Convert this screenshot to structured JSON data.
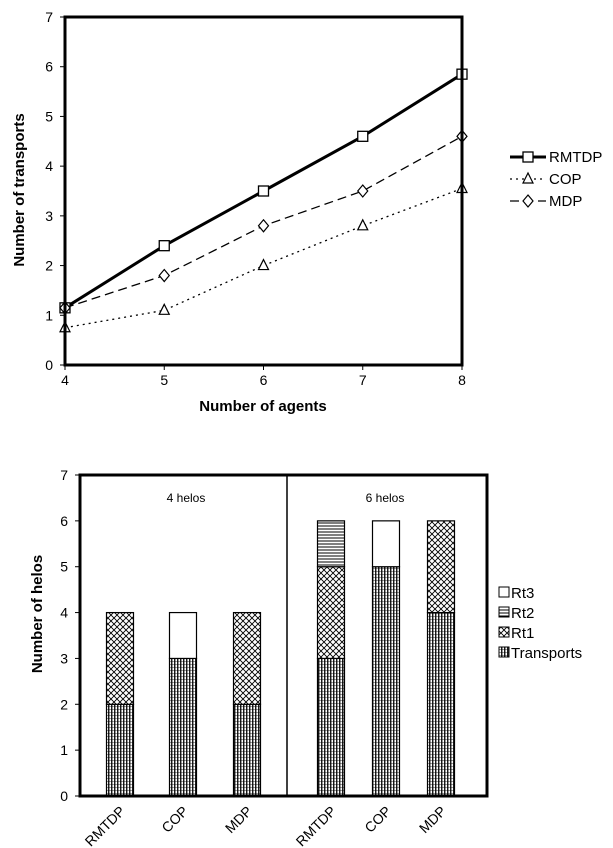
{
  "chart_data": [
    {
      "type": "line",
      "xlabel": "Number of agents",
      "ylabel": "Number of transports",
      "x": [
        4,
        5,
        6,
        7,
        8
      ],
      "xlim": [
        4,
        8
      ],
      "ylim": [
        0,
        7
      ],
      "xticks": [
        "4",
        "5",
        "6",
        "7",
        "8"
      ],
      "yticks": [
        "0",
        "1",
        "2",
        "3",
        "4",
        "5",
        "6",
        "7"
      ],
      "grid": false,
      "legend_position": "right",
      "series": [
        {
          "name": "RMTDP",
          "values": [
            1.15,
            2.4,
            3.5,
            4.6,
            5.85
          ],
          "marker": "square",
          "line": "solid-thick"
        },
        {
          "name": "COP",
          "values": [
            0.75,
            1.1,
            2.0,
            2.8,
            3.55
          ],
          "marker": "triangle",
          "line": "dotted"
        },
        {
          "name": "MDP",
          "values": [
            1.15,
            1.8,
            2.8,
            3.5,
            4.6
          ],
          "marker": "diamond",
          "line": "dashed"
        }
      ]
    },
    {
      "type": "bar",
      "stacked": true,
      "ylabel": "Number of helos",
      "xlabel": "",
      "ylim": [
        0,
        7
      ],
      "yticks": [
        "0",
        "1",
        "2",
        "3",
        "4",
        "5",
        "6",
        "7"
      ],
      "legend_position": "right",
      "groups": [
        {
          "label": "4 helos",
          "categories": [
            "RMTDP",
            "COP",
            "MDP"
          ]
        },
        {
          "label": "6 helos",
          "categories": [
            "RMTDP",
            "COP",
            "MDP"
          ]
        }
      ],
      "categories": [
        "RMTDP",
        "COP",
        "MDP",
        "RMTDP",
        "COP",
        "MDP"
      ],
      "series": [
        {
          "name": "Transports",
          "values": [
            2,
            3,
            2,
            3,
            5,
            4
          ]
        },
        {
          "name": "Rt1",
          "values": [
            2,
            0,
            2,
            2,
            0,
            2
          ]
        },
        {
          "name": "Rt2",
          "values": [
            0,
            0,
            0,
            1,
            0,
            0
          ]
        },
        {
          "name": "Rt3",
          "values": [
            0,
            1,
            0,
            0,
            1,
            0
          ]
        }
      ],
      "legend_order": [
        "Rt3",
        "Rt2",
        "Rt1",
        "Transports"
      ]
    }
  ]
}
